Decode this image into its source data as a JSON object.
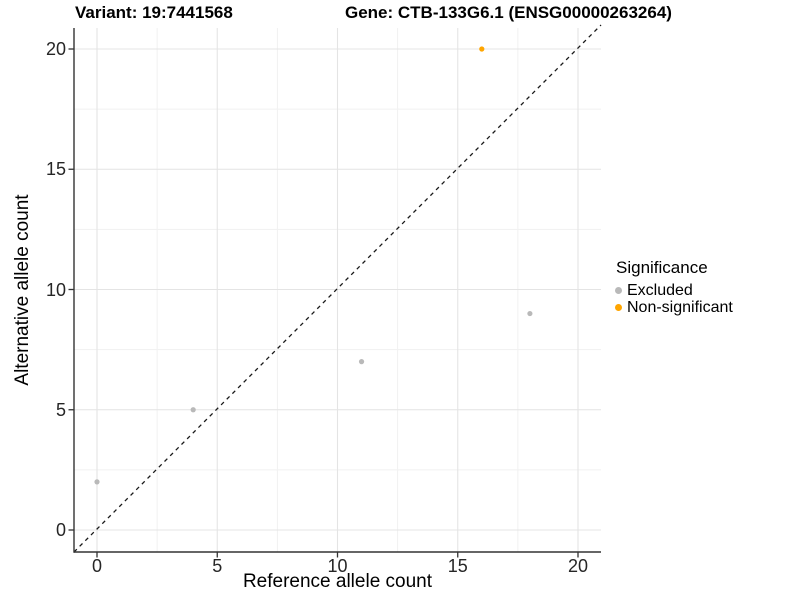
{
  "chart_data": {
    "type": "scatter",
    "title_variant": "Variant: 19:7441568",
    "title_gene": "Gene: CTB-133G6.1 (ENSG00000263264)",
    "xlabel": "Reference allele count",
    "ylabel": "Alternative allele count",
    "xlim": [
      0,
      20
    ],
    "ylim": [
      0,
      20
    ],
    "xticks": [
      0,
      5,
      10,
      15,
      20
    ],
    "yticks": [
      0,
      5,
      10,
      15,
      20
    ],
    "minor_xticks": [
      2.5,
      7.5,
      12.5,
      17.5
    ],
    "minor_yticks": [
      2.5,
      7.5,
      12.5,
      17.5
    ],
    "grid": "major-and-minor",
    "identity_line": {
      "style": "dashed",
      "slope": 1,
      "intercept": 0,
      "color": "#1a1a1a"
    },
    "series": [
      {
        "name": "Excluded",
        "color": "#b9b9b9",
        "points": [
          [
            0,
            2
          ],
          [
            4,
            5
          ],
          [
            11,
            7
          ],
          [
            18,
            9
          ]
        ]
      },
      {
        "name": "Non-significant",
        "color": "#ffa500",
        "points": [
          [
            16,
            20
          ]
        ]
      }
    ],
    "legend": {
      "title": "Significance",
      "position": "right",
      "items": [
        {
          "label": "Excluded",
          "color": "#b9b9b9"
        },
        {
          "label": "Non-significant",
          "color": "#ffa500"
        }
      ]
    }
  }
}
